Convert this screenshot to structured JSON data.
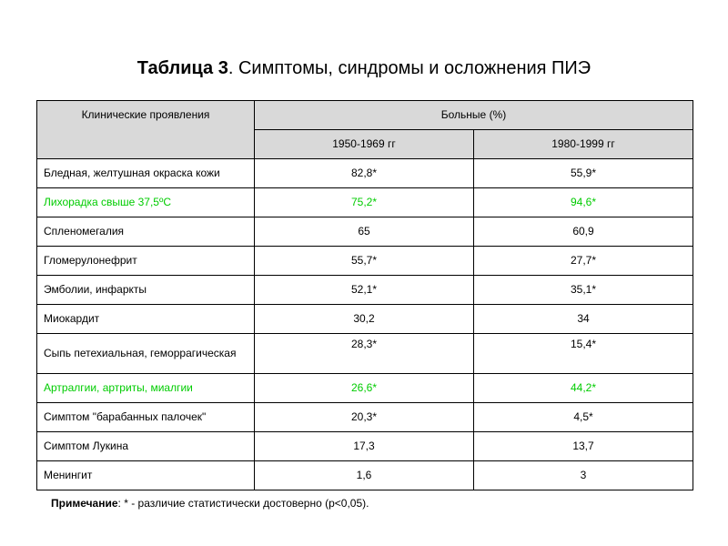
{
  "title": {
    "bold": "Таблица 3",
    "rest": ". Симптомы, синдромы и осложнения ПИЭ"
  },
  "colors": {
    "header_bg": "#d9d9d9",
    "highlight": "#00cc00"
  },
  "table": {
    "header_col1": "Клинические  проявления",
    "header_group": "Больные  (%)",
    "header_period1": "1950-1969  гг",
    "header_period2": "1980-1999  гг",
    "rows": [
      {
        "label": "Бледная,  желтушная  окраска кожи",
        "v1": "82,8*",
        "v2": "55,9*"
      },
      {
        "label": "Лихорадка свыше 37,5ºС",
        "v1": "75,2*",
        "v2": "94,6*"
      },
      {
        "label": "Спленомегалия",
        "v1": "65",
        "v2": "60,9"
      },
      {
        "label": "Гломерулонефрит",
        "v1": "55,7*",
        "v2": "27,7*"
      },
      {
        "label": "Эмболии,  инфаркты",
        "v1": "52,1*",
        "v2": "35,1*"
      },
      {
        "label": "Миокардит",
        "v1": "30,2",
        "v2": "34"
      },
      {
        "label": "Сыпь  петехиальная,  геморрагическая",
        "v1": "28,3*",
        "v2": "15,4*"
      },
      {
        "label": "Артралгии,  артриты,  миалгии",
        "v1": "26,6*",
        "v2": "44,2*"
      },
      {
        "label": "Симптом  \"барабанных  палочек\"",
        "v1": "20,3*",
        "v2": "4,5*"
      },
      {
        "label": "Симптом  Лукина",
        "v1": "17,3",
        "v2": "13,7"
      },
      {
        "label": "Менингит",
        "v1": "1,6",
        "v2": "3"
      }
    ]
  },
  "note": {
    "bold": "Примечание",
    "rest": ": * - различие  статистически  достоверно  (p<0,05)."
  }
}
